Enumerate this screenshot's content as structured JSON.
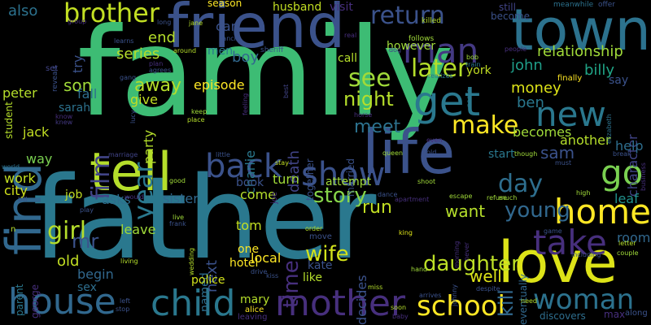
{
  "background": "#000000",
  "words": [
    {
      "text": "family",
      "color": "#3dbc74"
    },
    {
      "text": "father",
      "color": "#2a788e"
    },
    {
      "text": "friend",
      "color": "#3b528b"
    },
    {
      "text": "town",
      "color": "#2c728e"
    },
    {
      "text": "life",
      "color": "#3b528b"
    },
    {
      "text": "tell",
      "color": "#b5de2b"
    },
    {
      "text": "love",
      "color": "#dde318"
    },
    {
      "text": "find",
      "color": "#31688e"
    },
    {
      "text": "home",
      "color": "#fde725"
    },
    {
      "text": "child",
      "color": "#2a788e"
    },
    {
      "text": "mother",
      "color": "#472f7d"
    },
    {
      "text": "house",
      "color": "#31688e"
    },
    {
      "text": "school",
      "color": "#fde725"
    },
    {
      "text": "woman",
      "color": "#2c728e"
    },
    {
      "text": "take",
      "color": "#472f7d"
    },
    {
      "text": "back",
      "color": "#3b528b"
    },
    {
      "text": "show",
      "color": "#3b528b"
    },
    {
      "text": "get",
      "color": "#2a788e"
    },
    {
      "text": "go",
      "color": "#7ad151"
    },
    {
      "text": "new",
      "color": "#2a788e"
    },
    {
      "text": "man",
      "color": "#443983"
    },
    {
      "text": "make",
      "color": "#fde725"
    },
    {
      "text": "brother",
      "color": "#c2df23"
    },
    {
      "text": "return",
      "color": "#3b528b"
    },
    {
      "text": "later",
      "color": "#b5de2b"
    },
    {
      "text": "day",
      "color": "#2e6e8e"
    },
    {
      "text": "see",
      "color": "#a0da39"
    },
    {
      "text": "year",
      "color": "#2a788e"
    },
    {
      "text": "film",
      "color": "#414487"
    },
    {
      "text": "girl",
      "color": "#b5de2b"
    },
    {
      "text": "time",
      "color": "#472f7d"
    },
    {
      "text": "young",
      "color": "#31688e"
    },
    {
      "text": "daughter",
      "color": "#bddf26"
    },
    {
      "text": "wife",
      "color": "#d2e21b"
    },
    {
      "text": "story",
      "color": "#86d549"
    },
    {
      "text": "night",
      "color": "#b5de2b"
    },
    {
      "text": "meet",
      "color": "#2c728e"
    },
    {
      "text": "kill",
      "color": "#31688e"
    },
    {
      "text": "mr",
      "color": "#3b528b"
    },
    {
      "text": "end",
      "color": "#b5de2b"
    },
    {
      "text": "son",
      "color": "#a0da39"
    },
    {
      "text": "away",
      "color": "#b5de2b"
    },
    {
      "text": "run",
      "color": "#c2df23"
    },
    {
      "text": "want",
      "color": "#b5de2b"
    },
    {
      "text": "sam",
      "color": "#3b528b"
    },
    {
      "text": "money",
      "color": "#dde318"
    },
    {
      "text": "well",
      "color": "#dde318"
    },
    {
      "text": "old",
      "color": "#c2df23"
    },
    {
      "text": "next",
      "color": "#3b528b"
    },
    {
      "text": "death",
      "color": "#414487"
    },
    {
      "text": "also",
      "color": "#2c728e"
    },
    {
      "text": "boy",
      "color": "#31688e"
    },
    {
      "text": "series",
      "color": "#b5de2b"
    },
    {
      "text": "john",
      "color": "#1f9e89"
    },
    {
      "text": "billy",
      "color": "#20a486"
    },
    {
      "text": "ben",
      "color": "#2a788e"
    },
    {
      "text": "relationship",
      "color": "#a0da39"
    },
    {
      "text": "becomes",
      "color": "#a0da39"
    },
    {
      "text": "another",
      "color": "#b5de2b"
    },
    {
      "text": "character",
      "color": "#414487"
    },
    {
      "text": "help",
      "color": "#2e6e8e"
    },
    {
      "text": "room",
      "color": "#31688e"
    },
    {
      "text": "leaf",
      "color": "#21918c"
    },
    {
      "text": "city",
      "color": "#d2e21b"
    },
    {
      "text": "work",
      "color": "#c2df23"
    },
    {
      "text": "way",
      "color": "#7ad151"
    },
    {
      "text": "jack",
      "color": "#c2df23"
    },
    {
      "text": "peter",
      "color": "#b5de2b"
    },
    {
      "text": "sarah",
      "color": "#2c728e"
    },
    {
      "text": "fall",
      "color": "#2e6e8e"
    },
    {
      "text": "try",
      "color": "#3b528b"
    },
    {
      "text": "give",
      "color": "#c2df23"
    },
    {
      "text": "party",
      "color": "#b5de2b"
    },
    {
      "text": "episode",
      "color": "#fde725"
    },
    {
      "text": "charlie",
      "color": "#2a788e"
    },
    {
      "text": "together",
      "color": "#3b528b"
    },
    {
      "text": "married",
      "color": "#3b528b"
    },
    {
      "text": "turn",
      "color": "#a0da39"
    },
    {
      "text": "attempt",
      "color": "#a0da39"
    },
    {
      "text": "start",
      "color": "#2a788e"
    },
    {
      "text": "sister",
      "color": "#31688e"
    },
    {
      "text": "asks",
      "color": "#2e6e8e"
    },
    {
      "text": "job",
      "color": "#c2df23"
    },
    {
      "text": "come",
      "color": "#b5de2b"
    },
    {
      "text": "book",
      "color": "#3b528b"
    },
    {
      "text": "tom",
      "color": "#c2df23"
    },
    {
      "text": "leave",
      "color": "#a0da39"
    },
    {
      "text": "named",
      "color": "#2e6e8e"
    },
    {
      "text": "local",
      "color": "#fde725"
    },
    {
      "text": "one",
      "color": "#fde725"
    },
    {
      "text": "hotel",
      "color": "#fde725"
    },
    {
      "text": "kate",
      "color": "#3b528b"
    },
    {
      "text": "like",
      "color": "#b5de2b"
    },
    {
      "text": "decides",
      "color": "#3b528b"
    },
    {
      "text": "begin",
      "color": "#31688e"
    },
    {
      "text": "police",
      "color": "#d2e21b"
    },
    {
      "text": "mary",
      "color": "#b5de2b"
    },
    {
      "text": "sex",
      "color": "#2e6e8e"
    },
    {
      "text": "parent",
      "color": "#2a788e"
    },
    {
      "text": "george",
      "color": "#472f7d"
    },
    {
      "text": "student",
      "color": "#b5de2b"
    },
    {
      "text": "husband",
      "color": "#c2df23"
    },
    {
      "text": "visit",
      "color": "#472f7d"
    },
    {
      "text": "season",
      "color": "#fde725"
    },
    {
      "text": "car",
      "color": "#3b528b"
    },
    {
      "text": "men",
      "color": "#2a788e"
    },
    {
      "text": "york",
      "color": "#c2df23"
    },
    {
      "text": "however",
      "color": "#a0da39"
    },
    {
      "text": "call",
      "color": "#b5de2b"
    },
    {
      "text": "say",
      "color": "#3b528b"
    },
    {
      "text": "finally",
      "color": "#fde725"
    },
    {
      "text": "eventually",
      "color": "#31688e"
    },
    {
      "text": "discovers",
      "color": "#2e6e8e"
    },
    {
      "text": "max",
      "color": "#472f7d"
    },
    {
      "text": "along",
      "color": "#3b528b"
    },
    {
      "text": "alice",
      "color": "#fde725"
    },
    {
      "text": "leaving",
      "color": "#472f7d"
    },
    {
      "text": "still",
      "color": "#414487"
    },
    {
      "text": "become",
      "color": "#3b528b"
    },
    {
      "text": "meanwhile",
      "color": "#2c728e"
    },
    {
      "text": "offer",
      "color": "#3b528b"
    },
    {
      "text": "killed",
      "color": "#b5de2b"
    },
    {
      "text": "follows",
      "color": "#a0da39"
    },
    {
      "text": "sheriff",
      "color": "#3b528b"
    },
    {
      "text": "around",
      "color": "#b5de2b"
    },
    {
      "text": "jane",
      "color": "#b5de2b"
    },
    {
      "text": "long",
      "color": "#3b528b"
    },
    {
      "text": "ranch",
      "color": "#3b528b"
    },
    {
      "text": "group",
      "color": "#472f7d"
    },
    {
      "text": "reveals",
      "color": "#3b528b"
    },
    {
      "text": "set",
      "color": "#414487"
    },
    {
      "text": "dog",
      "color": "#414487"
    },
    {
      "text": "bob",
      "color": "#a0da39"
    },
    {
      "text": "train",
      "color": "#2a788e"
    },
    {
      "text": "realizes",
      "color": "#2a788e"
    },
    {
      "text": "people",
      "color": "#472f7d"
    },
    {
      "text": "learns",
      "color": "#3b528b"
    },
    {
      "text": "plan",
      "color": "#472f7d"
    },
    {
      "text": "agrees",
      "color": "#3b528b"
    },
    {
      "text": "gang",
      "color": "#3b528b"
    },
    {
      "text": "feeling",
      "color": "#472f7d"
    },
    {
      "text": "best",
      "color": "#414487"
    },
    {
      "text": "name",
      "color": "#2a788e"
    },
    {
      "text": "keep",
      "color": "#a0da39"
    },
    {
      "text": "place",
      "color": "#b5de2b"
    },
    {
      "text": "horse",
      "color": "#472f7d"
    },
    {
      "text": "lucy",
      "color": "#3b528b"
    },
    {
      "text": "knew",
      "color": "#443983"
    },
    {
      "text": "elizabeth",
      "color": "#2c728e"
    },
    {
      "text": "world",
      "color": "#2c728e"
    },
    {
      "text": "marriage",
      "color": "#414487"
    },
    {
      "text": "little",
      "color": "#3b528b"
    },
    {
      "text": "stay",
      "color": "#c2df23"
    },
    {
      "text": "even",
      "color": "#472f7d"
    },
    {
      "text": "queen",
      "color": "#a0da39"
    },
    {
      "text": "gold",
      "color": "#3b528b"
    },
    {
      "text": "though",
      "color": "#a0da39"
    },
    {
      "text": "break",
      "color": "#3b528b"
    },
    {
      "text": "business",
      "color": "#472f7d"
    },
    {
      "text": "must",
      "color": "#3b528b"
    },
    {
      "text": "good",
      "color": "#a0da39"
    },
    {
      "text": "shoot",
      "color": "#a0da39"
    },
    {
      "text": "dance",
      "color": "#3b528b"
    },
    {
      "text": "apartment",
      "color": "#472f7d"
    },
    {
      "text": "escape",
      "color": "#a0da39"
    },
    {
      "text": "refuse",
      "color": "#a0da39"
    },
    {
      "text": "much",
      "color": "#a0da39"
    },
    {
      "text": "high",
      "color": "#a0da39"
    },
    {
      "text": "bill",
      "color": "#3b528b"
    },
    {
      "text": "play",
      "color": "#3b528b"
    },
    {
      "text": "would",
      "color": "#472f7d"
    },
    {
      "text": "live",
      "color": "#a0da39"
    },
    {
      "text": "frank",
      "color": "#3b528b"
    },
    {
      "text": "game",
      "color": "#3b528b"
    },
    {
      "text": "letter",
      "color": "#b5de2b"
    },
    {
      "text": "including",
      "color": "#3b528b"
    },
    {
      "text": "couple",
      "color": "#a0da39"
    },
    {
      "text": "order",
      "color": "#b5de2b"
    },
    {
      "text": "king",
      "color": "#dde318"
    },
    {
      "text": "move",
      "color": "#3b528b"
    },
    {
      "text": "morning",
      "color": "#472f7d"
    },
    {
      "text": "never",
      "color": "#472f7d"
    },
    {
      "text": "living",
      "color": "#b5de2b"
    },
    {
      "text": "wedding",
      "color": "#b5de2b"
    },
    {
      "text": "drive",
      "color": "#3b528b"
    },
    {
      "text": "kiss",
      "color": "#3b528b"
    },
    {
      "text": "hand",
      "color": "#a0da39"
    },
    {
      "text": "miss",
      "color": "#b5de2b"
    },
    {
      "text": "johnny",
      "color": "#3b528b"
    },
    {
      "text": "arrives",
      "color": "#3b528b"
    },
    {
      "text": "despite",
      "color": "#3b528b"
    },
    {
      "text": "need",
      "color": "#b5de2b"
    },
    {
      "text": "left",
      "color": "#3b528b"
    },
    {
      "text": "stop",
      "color": "#3b528b"
    },
    {
      "text": "soon",
      "color": "#b5de2b"
    },
    {
      "text": "baby",
      "color": "#472f7d"
    },
    {
      "text": "n",
      "color": "#b5de2b"
    },
    {
      "text": "joe",
      "color": "#472f7d"
    },
    {
      "text": "real",
      "color": "#472f7d"
    },
    {
      "text": "know",
      "color": "#472f7d"
    }
  ]
}
